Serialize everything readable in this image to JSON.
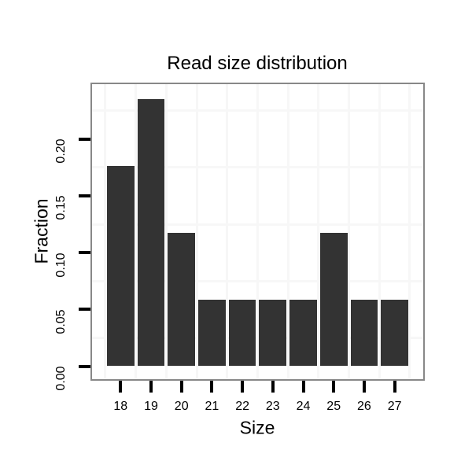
{
  "chart_data": {
    "type": "bar",
    "title": "Read size distribution",
    "xlabel": "Size",
    "ylabel": "Fraction",
    "categories": [
      "18",
      "19",
      "20",
      "21",
      "22",
      "23",
      "24",
      "25",
      "26",
      "27"
    ],
    "values": [
      0.1765,
      0.2353,
      0.1176,
      0.0588,
      0.0588,
      0.0588,
      0.0588,
      0.1176,
      0.0588,
      0.0588
    ],
    "ylim": [
      0,
      0.25
    ],
    "yticks": [
      {
        "v": 0.0,
        "label": "0.00"
      },
      {
        "v": 0.05,
        "label": "0.05"
      },
      {
        "v": 0.1,
        "label": "0.10"
      },
      {
        "v": 0.15,
        "label": "0.15"
      },
      {
        "v": 0.2,
        "label": "0.20"
      }
    ],
    "minor_gridlines_y": [
      0.025,
      0.075,
      0.125,
      0.175,
      0.225
    ],
    "grid": "minor gridlines only, vertical lines at category boundaries",
    "legend": "none",
    "colors": {
      "bar": "#333333",
      "grid": "#f7f7f7",
      "panel_border": "#888888",
      "tick": "#000000",
      "text": "#000000",
      "background": "#ffffff"
    }
  }
}
